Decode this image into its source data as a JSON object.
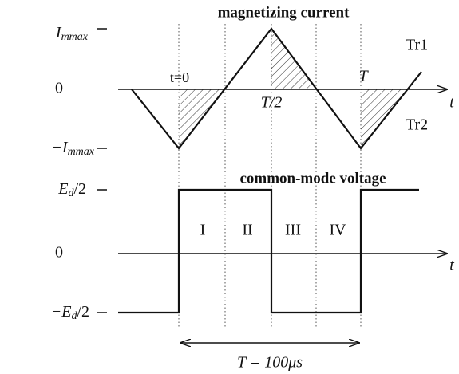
{
  "top": {
    "title": "magnetizing current",
    "y_labels": [
      {
        "main": "I",
        "sub": "mmax"
      },
      {
        "main": "0"
      },
      {
        "main": "−I",
        "sub": "mmax"
      }
    ],
    "tr1": "Tr1",
    "tr2": "Tr2",
    "t0": "t=0",
    "half": "T/2",
    "period": "T",
    "axis": "t"
  },
  "bottom": {
    "title": "common-mode voltage",
    "y_labels": [
      {
        "main": "E",
        "sub": "d",
        "tail": "/2"
      },
      {
        "main": "0"
      },
      {
        "main": "−E",
        "sub": "d",
        "tail": "/2"
      }
    ],
    "regions": [
      "I",
      "II",
      "III",
      "IV"
    ],
    "axis": "t",
    "period_label": "T = 100μs"
  }
}
